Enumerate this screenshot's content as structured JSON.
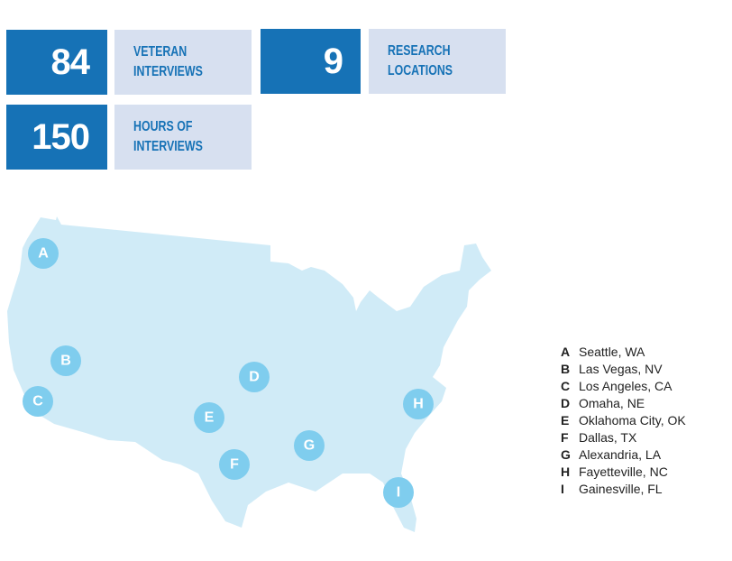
{
  "stats": [
    {
      "number": "84",
      "label_line1": "VETERAN",
      "label_line2": "INTERVIEWS"
    },
    {
      "number": "9",
      "label_line1": "RESEARCH",
      "label_line2": "LOCATIONS"
    },
    {
      "number": "150",
      "label_line1": "HOURS OF",
      "label_line2": "INTERVIEWS"
    }
  ],
  "colors": {
    "accent": "#1672b6",
    "label_bg": "#d7e0f0",
    "map_fill": "#d0ebf7",
    "pin": "#7fcdee"
  },
  "locations": [
    {
      "letter": "A",
      "name": "Seattle, WA"
    },
    {
      "letter": "B",
      "name": "Las Vegas, NV"
    },
    {
      "letter": "C",
      "name": "Los Angeles, CA"
    },
    {
      "letter": "D",
      "name": "Omaha, NE"
    },
    {
      "letter": "E",
      "name": "Oklahoma City, OK"
    },
    {
      "letter": "F",
      "name": "Dallas, TX"
    },
    {
      "letter": "G",
      "name": "Alexandria, LA"
    },
    {
      "letter": "H",
      "name": "Fayetteville, NC"
    },
    {
      "letter": "I",
      "name": "Gainesville, FL"
    }
  ]
}
